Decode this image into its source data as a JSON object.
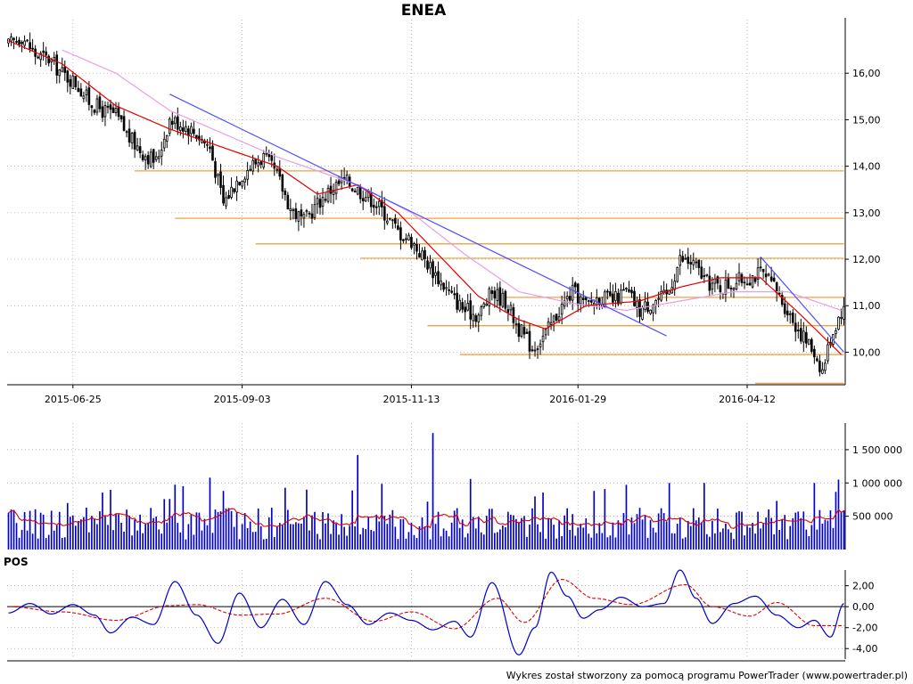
{
  "title": "ENEA",
  "footer": "Wykres został stworzony za pomocą programu PowerTrader (www.powertrader.pl)",
  "colors": {
    "candle": "#000000",
    "ma_fast": "#e00000",
    "ma_slow": "#e6a0e6",
    "trendline": "#5050ff",
    "support": "#f0a040",
    "volume": "#0000cc",
    "volume_ma": "#e00000",
    "pos": "#0000cc",
    "pos_signal": "#e00000",
    "grid": "#a0a0a0"
  },
  "chart_data": [
    {
      "type": "candlestick",
      "title": "ENEA",
      "x_tick_labels": [
        "2015-06-25",
        "2015-09-03",
        "2015-11-13",
        "2016-01-29",
        "2016-04-12"
      ],
      "y_tick_labels": [
        "10,00",
        "11,00",
        "12,00",
        "13,00",
        "14,00",
        "15,00",
        "16,00"
      ],
      "ylim": [
        9.3,
        17.0
      ],
      "series": [
        {
          "name": "",
          "kind": "close",
          "keypoints": [
            [
              0,
              16.6
            ],
            [
              5,
              16.8
            ],
            [
              10,
              16.4
            ],
            [
              15,
              16.3
            ],
            [
              20,
              16.0
            ],
            [
              25,
              15.8
            ],
            [
              30,
              15.4
            ],
            [
              35,
              15.2
            ],
            [
              40,
              15.1
            ],
            [
              45,
              14.6
            ],
            [
              50,
              14.3
            ],
            [
              55,
              14.1
            ],
            [
              60,
              15.0
            ],
            [
              65,
              14.9
            ],
            [
              70,
              14.7
            ],
            [
              75,
              14.4
            ],
            [
              80,
              13.2
            ],
            [
              85,
              13.7
            ],
            [
              90,
              14.0
            ],
            [
              95,
              14.2
            ],
            [
              100,
              13.8
            ],
            [
              105,
              13.1
            ],
            [
              110,
              12.8
            ],
            [
              115,
              13.2
            ],
            [
              120,
              13.5
            ],
            [
              125,
              13.7
            ],
            [
              130,
              13.5
            ],
            [
              135,
              13.3
            ],
            [
              140,
              13.0
            ],
            [
              145,
              12.6
            ],
            [
              150,
              12.4
            ],
            [
              155,
              12.0
            ],
            [
              160,
              11.6
            ],
            [
              165,
              11.2
            ],
            [
              170,
              10.9
            ],
            [
              175,
              10.8
            ],
            [
              180,
              11.3
            ],
            [
              185,
              11.1
            ],
            [
              190,
              10.5
            ],
            [
              195,
              10.1
            ],
            [
              200,
              10.4
            ],
            [
              205,
              10.9
            ],
            [
              210,
              11.3
            ],
            [
              215,
              11.0
            ],
            [
              220,
              11.2
            ],
            [
              225,
              11.1
            ],
            [
              230,
              11.3
            ],
            [
              235,
              10.9
            ],
            [
              240,
              11.1
            ],
            [
              245,
              11.2
            ],
            [
              250,
              12.0
            ],
            [
              255,
              11.9
            ],
            [
              260,
              11.5
            ],
            [
              265,
              11.4
            ],
            [
              270,
              11.5
            ],
            [
              275,
              11.6
            ],
            [
              280,
              11.7
            ],
            [
              285,
              11.4
            ],
            [
              290,
              10.9
            ],
            [
              295,
              10.4
            ],
            [
              300,
              10.0
            ],
            [
              303,
              9.6
            ],
            [
              306,
              10.3
            ],
            [
              310,
              10.9
            ]
          ]
        },
        {
          "name": "",
          "kind": "ma_fast",
          "keypoints": [
            [
              0,
              16.7
            ],
            [
              20,
              16.2
            ],
            [
              40,
              15.3
            ],
            [
              60,
              14.8
            ],
            [
              80,
              14.4
            ],
            [
              100,
              14.0
            ],
            [
              115,
              13.4
            ],
            [
              130,
              13.6
            ],
            [
              145,
              13.0
            ],
            [
              160,
              12.1
            ],
            [
              175,
              11.2
            ],
            [
              190,
              10.7
            ],
            [
              200,
              10.5
            ],
            [
              215,
              11.0
            ],
            [
              235,
              11.1
            ],
            [
              250,
              11.4
            ],
            [
              265,
              11.6
            ],
            [
              280,
              11.6
            ],
            [
              295,
              10.8
            ],
            [
              310,
              9.95
            ]
          ]
        },
        {
          "name": "",
          "kind": "ma_slow",
          "keypoints": [
            [
              20,
              16.5
            ],
            [
              40,
              16.0
            ],
            [
              60,
              15.2
            ],
            [
              80,
              14.7
            ],
            [
              100,
              14.2
            ],
            [
              115,
              13.9
            ],
            [
              130,
              13.6
            ],
            [
              150,
              13.0
            ],
            [
              170,
              12.1
            ],
            [
              190,
              11.3
            ],
            [
              210,
              11.05
            ],
            [
              230,
              10.9
            ],
            [
              250,
              11.1
            ],
            [
              270,
              11.3
            ],
            [
              290,
              11.3
            ],
            [
              310,
              10.9
            ]
          ]
        }
      ],
      "trendlines": [
        {
          "kind": "trendline",
          "from": [
            60,
            15.55
          ],
          "to": [
            245,
            10.35
          ]
        },
        {
          "kind": "trendline",
          "from": [
            280,
            12.05
          ],
          "to": [
            311,
            10.0
          ]
        }
      ],
      "support_levels": [
        {
          "y": 13.9,
          "from": 47,
          "to": 311
        },
        {
          "y": 12.88,
          "from": 62,
          "to": 311
        },
        {
          "y": 12.33,
          "from": 92,
          "to": 311
        },
        {
          "y": 12.02,
          "from": 131,
          "to": 311
        },
        {
          "y": 11.18,
          "from": 185,
          "to": 311
        },
        {
          "y": 10.57,
          "from": 156,
          "to": 311
        },
        {
          "y": 9.95,
          "from": 168,
          "to": 311
        },
        {
          "y": 9.33,
          "from": 278,
          "to": 311
        }
      ]
    },
    {
      "type": "bar",
      "y_tick_labels": [
        "500 000",
        "1 000 000",
        "1 500 000"
      ],
      "ylim": [
        0,
        1900000
      ],
      "series": [
        {
          "name": "",
          "kind": "volume",
          "baseline": 420000,
          "spikes": [
            [
              60,
              760000
            ],
            [
              75,
              1080000
            ],
            [
              80,
              880000
            ],
            [
              130,
              1420000
            ],
            [
              158,
              1750000
            ],
            [
              172,
              1060000
            ],
            [
              218,
              880000
            ],
            [
              246,
              1000000
            ],
            [
              259,
              1000000
            ],
            [
              300,
              1000000
            ],
            [
              309,
              1050000
            ]
          ]
        },
        {
          "name": "",
          "kind": "volume_ma",
          "baseline": 470000
        }
      ]
    },
    {
      "type": "line",
      "title": "POS",
      "y_tick_labels": [
        "-4,00",
        "-2,00",
        "0,00",
        "2,00"
      ],
      "ylim": [
        -5.0,
        3.5
      ],
      "series": [
        {
          "name": "",
          "kind": "pos",
          "keypoints": [
            [
              0,
              -0.6
            ],
            [
              8,
              0.3
            ],
            [
              16,
              -0.7
            ],
            [
              24,
              0.2
            ],
            [
              32,
              -0.8
            ],
            [
              38,
              -2.5
            ],
            [
              46,
              -1.0
            ],
            [
              54,
              -1.7
            ],
            [
              62,
              2.4
            ],
            [
              70,
              -0.8
            ],
            [
              78,
              -3.5
            ],
            [
              86,
              1.3
            ],
            [
              94,
              -2.0
            ],
            [
              102,
              0.7
            ],
            [
              110,
              -1.7
            ],
            [
              118,
              2.4
            ],
            [
              126,
              0.2
            ],
            [
              134,
              -1.7
            ],
            [
              142,
              -0.6
            ],
            [
              150,
              -1.3
            ],
            [
              158,
              -2.2
            ],
            [
              166,
              -1.4
            ],
            [
              172,
              -2.9
            ],
            [
              180,
              2.3
            ],
            [
              190,
              -4.6
            ],
            [
              196,
              -2.0
            ],
            [
              202,
              3.3
            ],
            [
              208,
              1.0
            ],
            [
              214,
              -1.1
            ],
            [
              220,
              -0.3
            ],
            [
              228,
              0.9
            ],
            [
              236,
              0.0
            ],
            [
              244,
              0.3
            ],
            [
              250,
              3.5
            ],
            [
              256,
              0.8
            ],
            [
              262,
              -1.6
            ],
            [
              270,
              0.3
            ],
            [
              278,
              1.0
            ],
            [
              286,
              -0.8
            ],
            [
              294,
              -2.0
            ],
            [
              300,
              -1.3
            ],
            [
              306,
              -2.9
            ],
            [
              311,
              0.3
            ]
          ]
        },
        {
          "name": "",
          "kind": "pos_signal",
          "keypoints": [
            [
              0,
              0.0
            ],
            [
              20,
              -0.5
            ],
            [
              40,
              -1.3
            ],
            [
              60,
              0.1
            ],
            [
              70,
              0.2
            ],
            [
              86,
              -0.8
            ],
            [
              100,
              -0.7
            ],
            [
              118,
              0.8
            ],
            [
              136,
              -1.4
            ],
            [
              150,
              -0.5
            ],
            [
              166,
              -2.1
            ],
            [
              182,
              0.8
            ],
            [
              192,
              -1.5
            ],
            [
              206,
              2.6
            ],
            [
              218,
              0.8
            ],
            [
              232,
              0.2
            ],
            [
              252,
              2.1
            ],
            [
              262,
              0.0
            ],
            [
              276,
              -0.9
            ],
            [
              286,
              0.4
            ],
            [
              300,
              -1.8
            ],
            [
              311,
              -1.8
            ]
          ]
        }
      ]
    }
  ]
}
